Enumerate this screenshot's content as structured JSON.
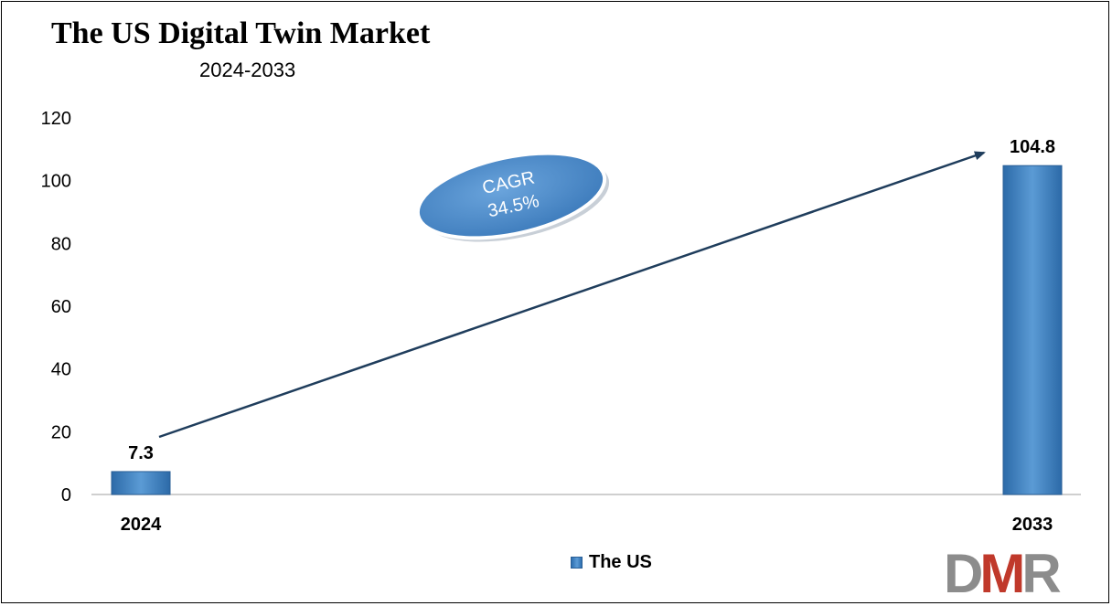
{
  "chart_data": {
    "type": "bar",
    "title": "The US Digital Twin Market",
    "subtitle": "2024-2033",
    "categories": [
      "2024",
      "2033"
    ],
    "series": [
      {
        "name": "The US",
        "values": [
          7.3,
          104.8
        ],
        "color": "#4f8fcf"
      }
    ],
    "data_labels": [
      "7.3",
      "104.8"
    ],
    "yticks": [
      "0",
      "20",
      "40",
      "60",
      "80",
      "100",
      "120"
    ],
    "ylim": [
      0,
      120
    ],
    "grid": false,
    "legend": "bottom-center",
    "annotation": {
      "line1": "CAGR",
      "line2": "34.5%",
      "fill": "#4a86c5"
    }
  },
  "logo": {
    "text": "DMR",
    "colors": [
      "#8c8c8c",
      "#c0392b"
    ]
  }
}
